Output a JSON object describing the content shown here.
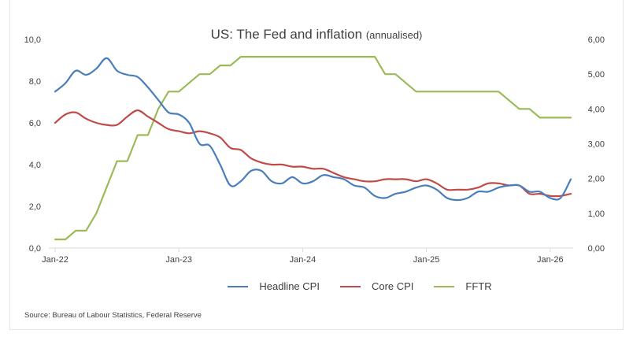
{
  "chart_data": {
    "type": "line",
    "title": "US: The Fed and inflation",
    "subtitle": "(annualised)",
    "xlabel": "",
    "ylabel_left": "",
    "ylabel_right": "",
    "x_start": "Jan-22",
    "x_end": "Mar-26",
    "x_tick_labels": [
      "Jan-22",
      "Jan-23",
      "Jan-24",
      "Jan-25",
      "Jan-26"
    ],
    "x_tick_index": [
      0,
      12,
      24,
      36,
      48
    ],
    "y_left": {
      "range": [
        0,
        10
      ],
      "ticks": [
        "0,0",
        "2,0",
        "4,0",
        "6,0",
        "8,0",
        "10,0"
      ],
      "tick_values": [
        0,
        2,
        4,
        6,
        8,
        10
      ]
    },
    "y_right": {
      "range": [
        0,
        6
      ],
      "ticks": [
        "0,00",
        "1,00",
        "2,00",
        "3,00",
        "4,00",
        "5,00",
        "6,00"
      ],
      "tick_values": [
        0,
        1,
        2,
        3,
        4,
        5,
        6
      ]
    },
    "grid": false,
    "legend_position": "bottom",
    "series": [
      {
        "name": "Headline CPI",
        "axis": "left",
        "color": "#4a7ebb",
        "values": [
          7.5,
          7.9,
          8.5,
          8.3,
          8.6,
          9.1,
          8.5,
          8.3,
          8.2,
          7.7,
          7.1,
          6.5,
          6.4,
          6.0,
          5.0,
          4.9,
          4.0,
          3.0,
          3.2,
          3.7,
          3.7,
          3.2,
          3.1,
          3.4,
          3.1,
          3.2,
          3.5,
          3.4,
          3.3,
          3.0,
          2.9,
          2.5,
          2.4,
          2.6,
          2.7,
          2.9,
          3.0,
          2.8,
          2.4,
          2.3,
          2.4,
          2.7,
          2.7,
          2.9,
          3.0,
          3.0,
          2.7,
          2.7,
          2.4,
          2.4,
          3.3
        ]
      },
      {
        "name": "Core CPI",
        "axis": "left",
        "color": "#be4b48",
        "values": [
          6.0,
          6.4,
          6.5,
          6.2,
          6.0,
          5.9,
          5.9,
          6.3,
          6.6,
          6.3,
          6.0,
          5.7,
          5.6,
          5.5,
          5.6,
          5.5,
          5.3,
          4.8,
          4.7,
          4.3,
          4.1,
          4.0,
          4.0,
          3.9,
          3.9,
          3.8,
          3.8,
          3.6,
          3.4,
          3.3,
          3.2,
          3.2,
          3.3,
          3.3,
          3.3,
          3.2,
          3.3,
          3.1,
          2.8,
          2.8,
          2.8,
          2.9,
          3.1,
          3.1,
          3.0,
          3.0,
          2.6,
          2.6,
          2.5,
          2.5,
          2.6
        ]
      },
      {
        "name": "FFTR",
        "axis": "right",
        "color": "#9bbb59",
        "values": [
          0.25,
          0.25,
          0.5,
          0.5,
          1.0,
          1.75,
          2.5,
          2.5,
          3.25,
          3.25,
          4.0,
          4.5,
          4.5,
          4.75,
          5.0,
          5.0,
          5.25,
          5.25,
          5.5,
          5.5,
          5.5,
          5.5,
          5.5,
          5.5,
          5.5,
          5.5,
          5.5,
          5.5,
          5.5,
          5.5,
          5.5,
          5.5,
          5.0,
          5.0,
          4.75,
          4.5,
          4.5,
          4.5,
          4.5,
          4.5,
          4.5,
          4.5,
          4.5,
          4.5,
          4.25,
          4.0,
          4.0,
          3.75,
          3.75,
          3.75,
          3.75
        ]
      }
    ]
  },
  "source": "Source: Bureau of Labour Statistics, Federal Reserve"
}
